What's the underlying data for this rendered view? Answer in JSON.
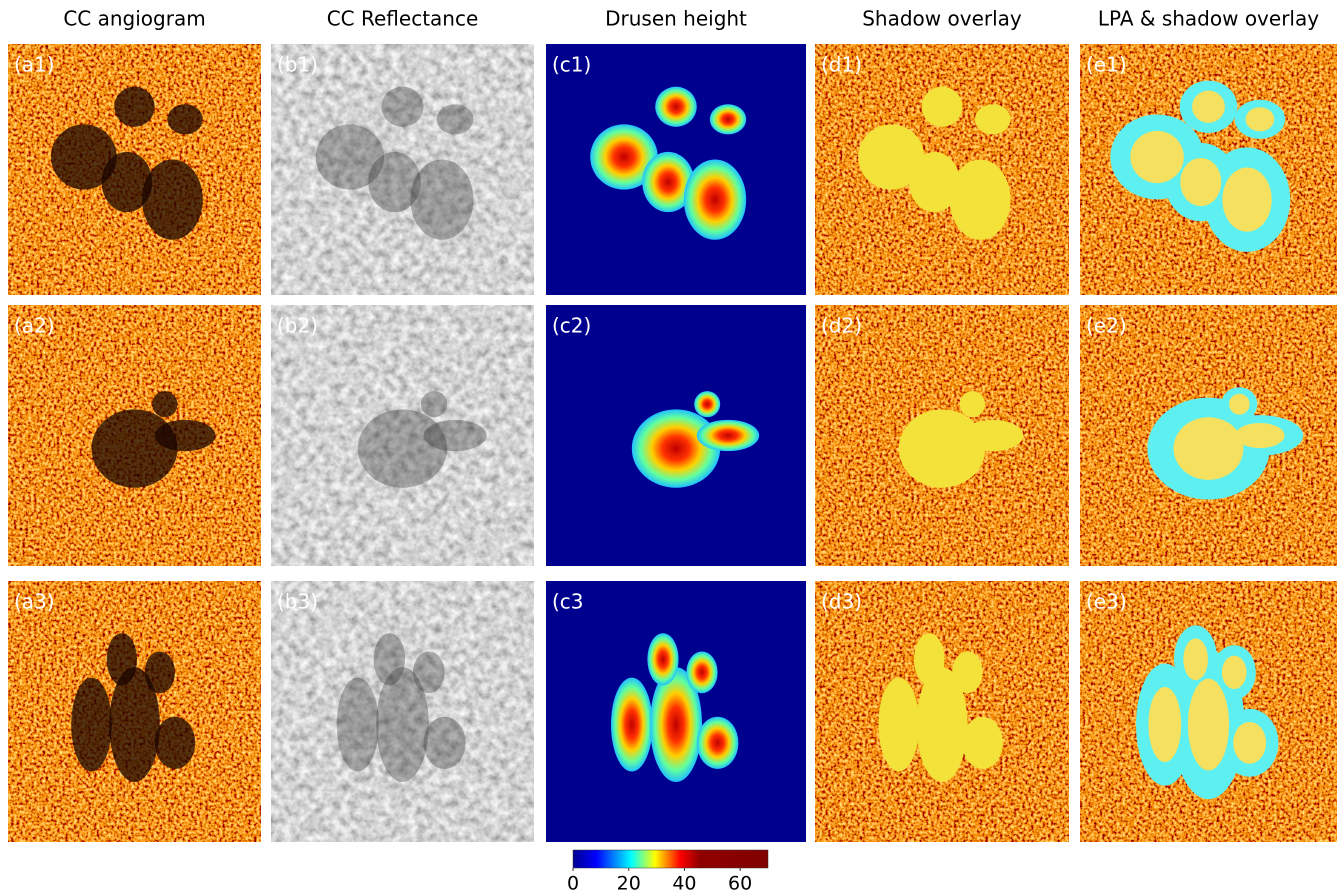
{
  "columns": [
    {
      "title": "CC angiogram",
      "panels": [
        "(a1)",
        "(a2)",
        "(a3)"
      ]
    },
    {
      "title": "CC Reflectance",
      "panels": [
        "(b1)",
        "(b2)",
        "(b3)"
      ]
    },
    {
      "title": "Drusen height",
      "panels": [
        "(c1)",
        "(c2)",
        "(c3"
      ]
    },
    {
      "title": "Shadow overlay",
      "panels": [
        "(d1)",
        "(d2)",
        "(d3)"
      ]
    },
    {
      "title": "LPA & shadow overlay",
      "panels": [
        "(e1)",
        "(e2)",
        "(e3)"
      ]
    }
  ],
  "colorbar": {
    "lim": [
      0,
      70
    ],
    "ticks": [
      0,
      20,
      40,
      60
    ]
  }
}
